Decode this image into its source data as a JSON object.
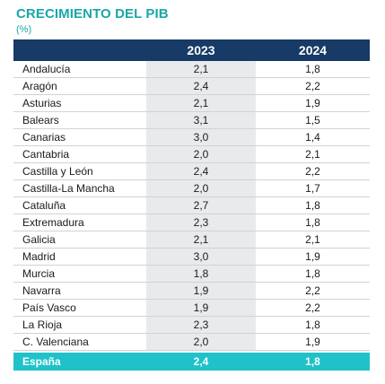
{
  "title": "CRECIMIENTO DEL PIB",
  "subtitle": "(%)",
  "chart_data": {
    "type": "table",
    "title": "CRECIMIENTO DEL PIB",
    "subtitle": "(%)",
    "columns": [
      "2023",
      "2024"
    ],
    "rows": [
      {
        "region": "Andalucía",
        "v2023": "2,1",
        "v2024": "1,8"
      },
      {
        "region": "Aragón",
        "v2023": "2,4",
        "v2024": "2,2"
      },
      {
        "region": "Asturias",
        "v2023": "2,1",
        "v2024": "1,9"
      },
      {
        "region": "Balears",
        "v2023": "3,1",
        "v2024": "1,5"
      },
      {
        "region": "Canarias",
        "v2023": "3,0",
        "v2024": "1,4"
      },
      {
        "region": "Cantabria",
        "v2023": "2,0",
        "v2024": "2,1"
      },
      {
        "region": "Castilla y León",
        "v2023": "2,4",
        "v2024": "2,2"
      },
      {
        "region": "Castilla-La Mancha",
        "v2023": "2,0",
        "v2024": "1,7"
      },
      {
        "region": "Cataluña",
        "v2023": "2,7",
        "v2024": "1,8"
      },
      {
        "region": "Extremadura",
        "v2023": "2,3",
        "v2024": "1,8"
      },
      {
        "region": "Galicia",
        "v2023": "2,1",
        "v2024": "2,1"
      },
      {
        "region": "Madrid",
        "v2023": "3,0",
        "v2024": "1,9"
      },
      {
        "region": "Murcia",
        "v2023": "1,8",
        "v2024": "1,8"
      },
      {
        "region": "Navarra",
        "v2023": "1,9",
        "v2024": "2,2"
      },
      {
        "region": "País Vasco",
        "v2023": "1,9",
        "v2024": "2,2"
      },
      {
        "region": "La Rioja",
        "v2023": "2,3",
        "v2024": "1,8"
      },
      {
        "region": "C. Valenciana",
        "v2023": "2,0",
        "v2024": "1,9"
      }
    ],
    "total": {
      "region": "España",
      "v2023": "2,4",
      "v2024": "1,8"
    }
  },
  "colors": {
    "title": "#19a7a8",
    "header_bg": "#173a66",
    "col2023_bg": "#e9eaec",
    "total_bg": "#1fc2c9"
  }
}
